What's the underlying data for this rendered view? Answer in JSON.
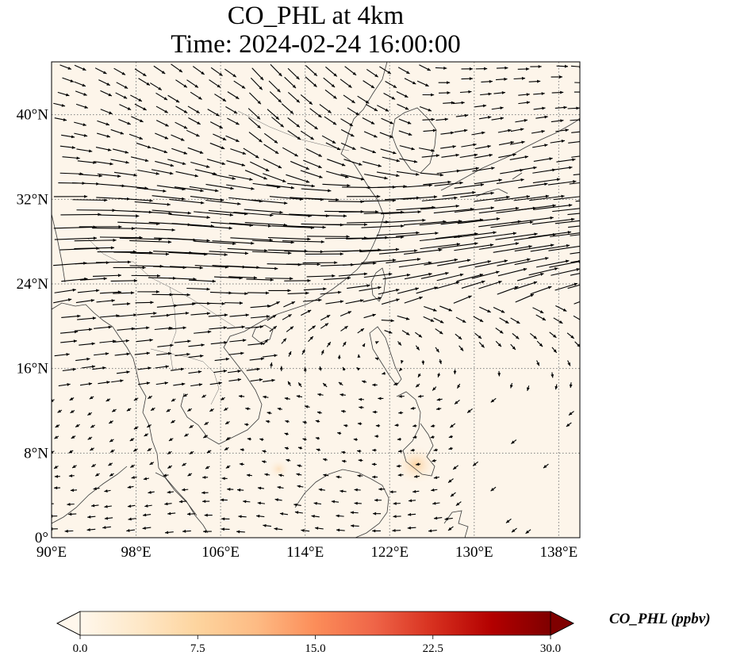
{
  "title": {
    "line1": "CO_PHL at 4km",
    "line2": "Time: 2024-02-24 16:00:00"
  },
  "map": {
    "extent": {
      "lon": [
        90,
        140
      ],
      "lat": [
        0,
        45
      ]
    },
    "background_color": "#fdf5ea",
    "gridline_color": "#7f7f7f",
    "lon_ticks": [
      {
        "value": 90,
        "label": "90°E"
      },
      {
        "value": 98,
        "label": "98°E"
      },
      {
        "value": 106,
        "label": "106°E"
      },
      {
        "value": 114,
        "label": "114°E"
      },
      {
        "value": 122,
        "label": "122°E"
      },
      {
        "value": 130,
        "label": "130°E"
      },
      {
        "value": 138,
        "label": "138°E"
      }
    ],
    "lat_ticks": [
      {
        "value": 0,
        "label": "0°"
      },
      {
        "value": 8,
        "label": "8°N"
      },
      {
        "value": 16,
        "label": "16°N"
      },
      {
        "value": 24,
        "label": "24°N"
      },
      {
        "value": 32,
        "label": "32°N"
      },
      {
        "value": 40,
        "label": "40°N"
      }
    ],
    "hotspots": [
      {
        "lon": 124.5,
        "lat": 6.9,
        "value": 4.5
      },
      {
        "lon": 111.5,
        "lat": 6.5,
        "value": 1.2
      }
    ]
  },
  "colorbar": {
    "label": "CO_PHL (ppbv)",
    "colormap": "OrRd",
    "min": 0,
    "max": 30,
    "extend": "both",
    "ticks": [
      "0.0",
      "7.5",
      "15.0",
      "22.5",
      "30.0"
    ],
    "colors": [
      "#fff7ec",
      "#fee8c8",
      "#fdd49e",
      "#fdbb84",
      "#fc8d59",
      "#ef6548",
      "#d7301f",
      "#b30000",
      "#7f0000"
    ]
  }
}
